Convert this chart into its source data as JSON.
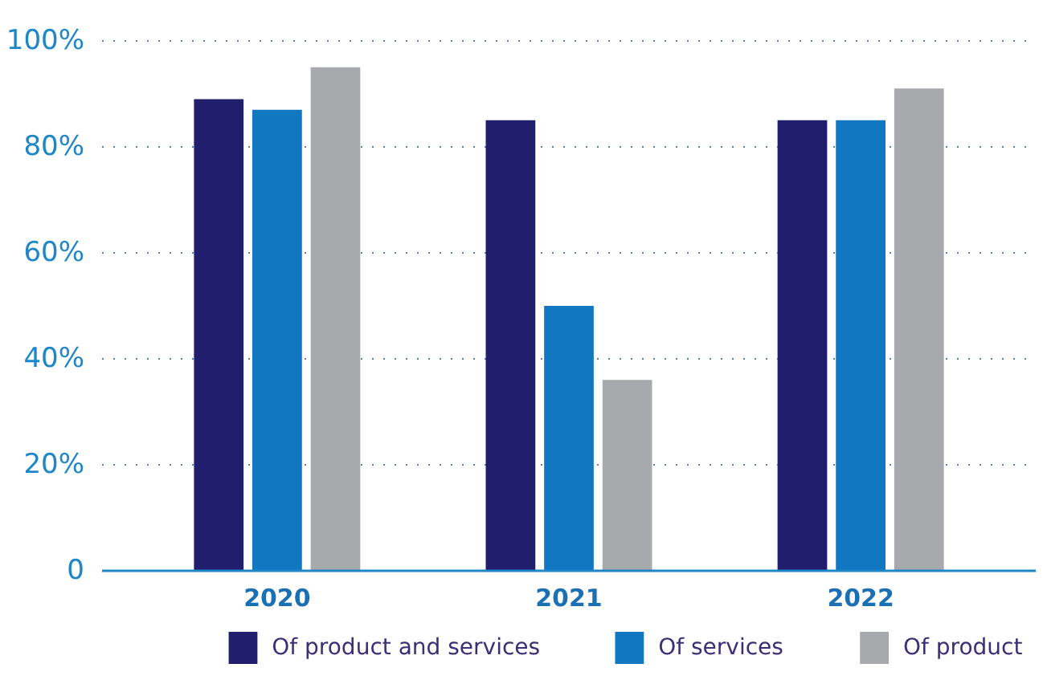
{
  "chart_data": {
    "type": "bar",
    "categories": [
      "2020",
      "2021",
      "2022"
    ],
    "series": [
      {
        "name": "Of product and services",
        "color": "#221e6e",
        "values": [
          89,
          85,
          85
        ]
      },
      {
        "name": "Of services",
        "color": "#1177c0",
        "values": [
          87,
          50,
          85
        ]
      },
      {
        "name": "Of product",
        "color": "#a7a9ac",
        "values": [
          95,
          36,
          91
        ]
      }
    ],
    "ylim": [
      0,
      100
    ],
    "yticks": [
      {
        "value": 0,
        "label": "0"
      },
      {
        "value": 20,
        "label": "20%"
      },
      {
        "value": 40,
        "label": "40%"
      },
      {
        "value": 60,
        "label": "60%"
      },
      {
        "value": 80,
        "label": "80%"
      },
      {
        "value": 100,
        "label": "100%"
      }
    ],
    "grid": "y",
    "legend": "bottom"
  }
}
